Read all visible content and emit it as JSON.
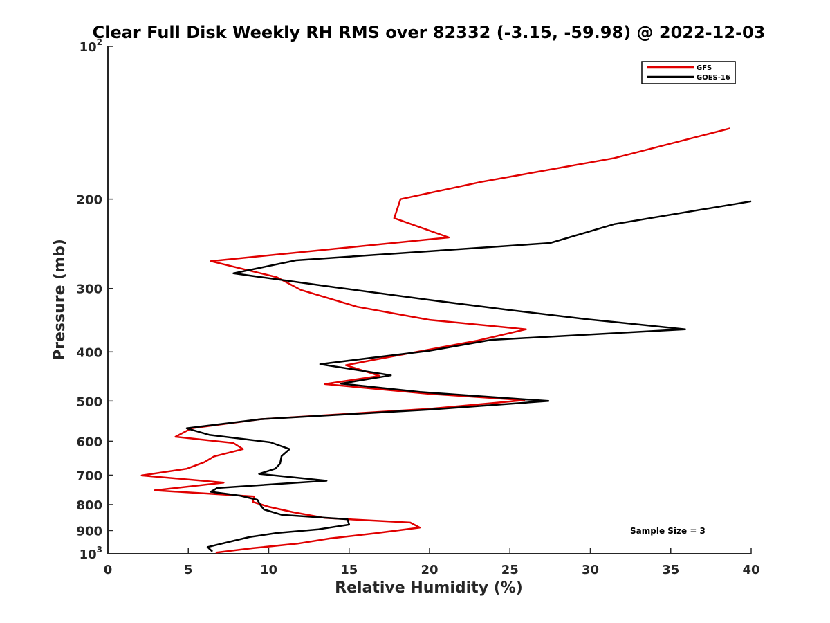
{
  "chart_data": {
    "type": "line",
    "title": "Clear Full Disk Weekly RH RMS over 82332 (-3.15, -59.98) @ 2022-12-03",
    "xlabel": "Relative Humidity (%)",
    "ylabel": "Pressure (mb)",
    "xlim": [
      0,
      40
    ],
    "ylim": [
      100,
      1000
    ],
    "y_scale": "log",
    "y_reversed": true,
    "x_ticks": [
      "0",
      "5",
      "10",
      "15",
      "20",
      "25",
      "30",
      "35",
      "40"
    ],
    "y_ticks": [
      {
        "value": 100,
        "label": "10",
        "sup": "2"
      },
      {
        "value": 200,
        "label": "200"
      },
      {
        "value": 300,
        "label": "300"
      },
      {
        "value": 400,
        "label": "400"
      },
      {
        "value": 500,
        "label": "500"
      },
      {
        "value": 600,
        "label": "600"
      },
      {
        "value": 700,
        "label": "700"
      },
      {
        "value": 800,
        "label": "800"
      },
      {
        "value": 900,
        "label": "900"
      },
      {
        "value": 1000,
        "label": "10",
        "sup": "3"
      }
    ],
    "grid": false,
    "legend_position": "top-right",
    "series": [
      {
        "name": "GFS",
        "color": "#e00000",
        "points": [
          [
            38.7,
            145
          ],
          [
            31.5,
            166
          ],
          [
            23.2,
            185
          ],
          [
            18.2,
            200
          ],
          [
            17.8,
            218
          ],
          [
            21.2,
            238
          ],
          [
            6.4,
            265
          ],
          [
            10.5,
            285
          ],
          [
            12.0,
            302
          ],
          [
            15.5,
            326
          ],
          [
            20.0,
            346
          ],
          [
            26.0,
            361
          ],
          [
            23.0,
            380
          ],
          [
            16.5,
            415
          ],
          [
            14.8,
            425
          ],
          [
            16.9,
            446
          ],
          [
            13.5,
            463
          ],
          [
            20.0,
            484
          ],
          [
            25.9,
            498
          ],
          [
            20.0,
            518
          ],
          [
            9.5,
            543
          ],
          [
            5.2,
            566
          ],
          [
            4.2,
            588
          ],
          [
            7.8,
            605
          ],
          [
            8.4,
            622
          ],
          [
            6.6,
            643
          ],
          [
            6.0,
            660
          ],
          [
            4.9,
            680
          ],
          [
            2.1,
            701
          ],
          [
            7.2,
            724
          ],
          [
            2.9,
            750
          ],
          [
            9.1,
            771
          ],
          [
            9.0,
            790
          ],
          [
            10.0,
            808
          ],
          [
            11.5,
            828
          ],
          [
            13.5,
            850
          ],
          [
            18.8,
            868
          ],
          [
            19.4,
            888
          ],
          [
            16.5,
            912
          ],
          [
            13.8,
            933
          ],
          [
            11.8,
            955
          ],
          [
            9.0,
            975
          ],
          [
            6.7,
            995
          ]
        ]
      },
      {
        "name": "GOES-16",
        "color": "#000000",
        "points": [
          [
            40.0,
            202
          ],
          [
            31.5,
            224
          ],
          [
            27.5,
            244
          ],
          [
            11.7,
            264
          ],
          [
            7.8,
            280
          ],
          [
            14.0,
            298
          ],
          [
            20.0,
            316
          ],
          [
            25.0,
            331
          ],
          [
            29.8,
            345
          ],
          [
            35.9,
            361
          ],
          [
            23.8,
            379
          ],
          [
            20.0,
            398
          ],
          [
            13.2,
            423
          ],
          [
            17.6,
            445
          ],
          [
            14.5,
            462
          ],
          [
            19.4,
            480
          ],
          [
            27.4,
            500
          ],
          [
            20.0,
            520
          ],
          [
            9.5,
            543
          ],
          [
            4.9,
            566
          ],
          [
            6.3,
            583
          ],
          [
            10.1,
            603
          ],
          [
            11.3,
            622
          ],
          [
            10.8,
            642
          ],
          [
            10.7,
            665
          ],
          [
            10.4,
            680
          ],
          [
            9.4,
            696
          ],
          [
            13.6,
            718
          ],
          [
            6.8,
            742
          ],
          [
            6.4,
            755
          ],
          [
            8.2,
            768
          ],
          [
            9.3,
            783
          ],
          [
            9.5,
            803
          ],
          [
            9.7,
            818
          ],
          [
            10.8,
            838
          ],
          [
            14.9,
            855
          ],
          [
            15.0,
            876
          ],
          [
            13.1,
            895
          ],
          [
            10.5,
            910
          ],
          [
            8.8,
            927
          ],
          [
            7.5,
            948
          ],
          [
            6.2,
            970
          ],
          [
            6.5,
            990
          ]
        ]
      }
    ],
    "annotations": [
      "Sample Size = 3"
    ]
  }
}
